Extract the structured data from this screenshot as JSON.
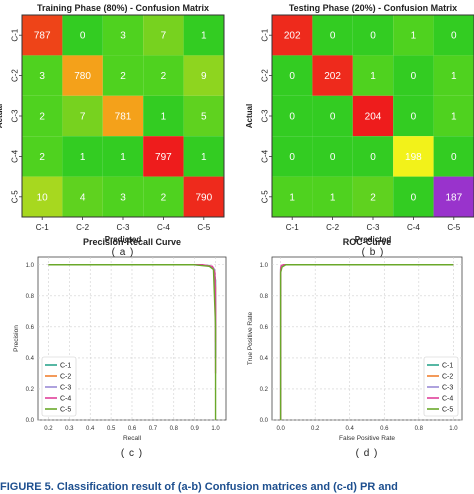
{
  "chart_data": [
    {
      "type": "heatmap",
      "title": "Training Phase (80%) - Confusion Matrix",
      "xlabel": "Predicted",
      "ylabel": "Actual",
      "x_categories": [
        "C-1",
        "C-2",
        "C-3",
        "C-4",
        "C-5"
      ],
      "y_categories": [
        "C-1",
        "C-2",
        "C-3",
        "C-4",
        "C-5"
      ],
      "values": [
        [
          787,
          0,
          3,
          7,
          1
        ],
        [
          3,
          780,
          2,
          2,
          9
        ],
        [
          2,
          7,
          781,
          1,
          5
        ],
        [
          2,
          1,
          1,
          797,
          1
        ],
        [
          10,
          4,
          3,
          2,
          790
        ]
      ],
      "cell_colors": [
        [
          "#ee4418",
          "#33cc22",
          "#4fd21f",
          "#77d21f",
          "#33cc22"
        ],
        [
          "#4fd21f",
          "#f4a11a",
          "#4fd21f",
          "#4fd21f",
          "#8ed51f"
        ],
        [
          "#4fd21f",
          "#77d21f",
          "#f4a11a",
          "#33cc22",
          "#5fd21f"
        ],
        [
          "#4fd21f",
          "#33cc22",
          "#33cc22",
          "#ee1c1c",
          "#33cc22"
        ],
        [
          "#a7d81f",
          "#5fd21f",
          "#4fd21f",
          "#4fd21f",
          "#ee2a1c"
        ]
      ],
      "caption": "( a )"
    },
    {
      "type": "heatmap",
      "title": "Testing Phase (20%) - Confusion Matrix",
      "xlabel": "Predicted",
      "ylabel": "Actual",
      "x_categories": [
        "C-1",
        "C-2",
        "C-3",
        "C-4",
        "C-5"
      ],
      "y_categories": [
        "C-1",
        "C-2",
        "C-3",
        "C-4",
        "C-5"
      ],
      "values": [
        [
          202,
          0,
          0,
          1,
          0
        ],
        [
          0,
          202,
          1,
          0,
          1
        ],
        [
          0,
          0,
          204,
          0,
          1
        ],
        [
          0,
          0,
          0,
          198,
          0
        ],
        [
          1,
          1,
          2,
          0,
          187
        ]
      ],
      "cell_colors": [
        [
          "#ee2a1c",
          "#33cc22",
          "#33cc22",
          "#4fd21f",
          "#33cc22"
        ],
        [
          "#33cc22",
          "#ee2a1c",
          "#4fd21f",
          "#33cc22",
          "#4fd21f"
        ],
        [
          "#33cc22",
          "#33cc22",
          "#ee1c1c",
          "#33cc22",
          "#4fd21f"
        ],
        [
          "#33cc22",
          "#33cc22",
          "#33cc22",
          "#f2f21a",
          "#33cc22"
        ],
        [
          "#4fd21f",
          "#4fd21f",
          "#5fd21f",
          "#33cc22",
          "#9933cc"
        ]
      ],
      "caption": "( b )"
    },
    {
      "type": "line",
      "title": "Precision-Recall Curve",
      "xlabel": "Recall",
      "ylabel": "Precision",
      "xlim": [
        0.15,
        1.05
      ],
      "ylim": [
        0.0,
        1.05
      ],
      "xticks": [
        "0.2",
        "0.3",
        "0.4",
        "0.5",
        "0.6",
        "0.7",
        "0.8",
        "0.9",
        "1.0"
      ],
      "yticks": [
        "0.0",
        "0.2",
        "0.4",
        "0.6",
        "0.8",
        "1.0"
      ],
      "grid": true,
      "legend": "bottom-left",
      "series": [
        {
          "name": "C-1",
          "color": "#2ca58d",
          "points": [
            [
              0.2,
              1.0
            ],
            [
              0.9,
              1.0
            ],
            [
              0.97,
              0.995
            ],
            [
              0.99,
              0.98
            ],
            [
              1.0,
              0.9
            ],
            [
              1.0,
              0.4
            ]
          ]
        },
        {
          "name": "C-2",
          "color": "#f08030",
          "points": [
            [
              0.2,
              1.0
            ],
            [
              0.92,
              1.0
            ],
            [
              0.98,
              0.99
            ],
            [
              0.995,
              0.96
            ],
            [
              1.0,
              0.85
            ],
            [
              1.0,
              0.5
            ]
          ]
        },
        {
          "name": "C-3",
          "color": "#9a8ad6",
          "points": [
            [
              0.2,
              1.0
            ],
            [
              0.93,
              1.0
            ],
            [
              0.98,
              0.99
            ],
            [
              0.995,
              0.97
            ],
            [
              1.0,
              0.8
            ],
            [
              1.0,
              0.45
            ]
          ]
        },
        {
          "name": "C-4",
          "color": "#e0409a",
          "points": [
            [
              0.2,
              1.0
            ],
            [
              0.94,
              1.0
            ],
            [
              0.985,
              0.99
            ],
            [
              0.997,
              0.95
            ],
            [
              1.0,
              0.7
            ],
            [
              1.0,
              0.3
            ]
          ]
        },
        {
          "name": "C-5",
          "color": "#6aa82a",
          "points": [
            [
              0.2,
              1.0
            ],
            [
              0.9,
              1.0
            ],
            [
              0.97,
              0.99
            ],
            [
              0.99,
              0.97
            ],
            [
              1.0,
              0.6
            ],
            [
              1.0,
              0.0
            ]
          ]
        }
      ],
      "caption": "( c )"
    },
    {
      "type": "line",
      "title": "ROC-Curve",
      "xlabel": "False Positive Rate",
      "ylabel": "True Positive Rate",
      "xlim": [
        -0.05,
        1.05
      ],
      "ylim": [
        0.0,
        1.05
      ],
      "xticks": [
        "0.0",
        "0.2",
        "0.4",
        "0.6",
        "0.8",
        "1.0"
      ],
      "yticks": [
        "0.0",
        "0.2",
        "0.4",
        "0.6",
        "0.8",
        "1.0"
      ],
      "grid": true,
      "legend": "bottom-right",
      "series": [
        {
          "name": "C-1",
          "color": "#2ca58d",
          "points": [
            [
              0.0,
              0.0
            ],
            [
              0.0,
              0.97
            ],
            [
              0.005,
              0.99
            ],
            [
              0.02,
              1.0
            ],
            [
              1.0,
              1.0
            ]
          ]
        },
        {
          "name": "C-2",
          "color": "#f08030",
          "points": [
            [
              0.0,
              0.0
            ],
            [
              0.0,
              0.96
            ],
            [
              0.006,
              0.99
            ],
            [
              0.025,
              1.0
            ],
            [
              1.0,
              1.0
            ]
          ]
        },
        {
          "name": "C-3",
          "color": "#9a8ad6",
          "points": [
            [
              0.0,
              0.0
            ],
            [
              0.0,
              0.97
            ],
            [
              0.005,
              0.99
            ],
            [
              0.02,
              1.0
            ],
            [
              1.0,
              1.0
            ]
          ]
        },
        {
          "name": "C-4",
          "color": "#e0409a",
          "points": [
            [
              0.0,
              0.0
            ],
            [
              0.0,
              0.98
            ],
            [
              0.004,
              0.995
            ],
            [
              0.015,
              1.0
            ],
            [
              1.0,
              1.0
            ]
          ]
        },
        {
          "name": "C-5",
          "color": "#6aa82a",
          "points": [
            [
              0.0,
              0.0
            ],
            [
              0.0,
              0.95
            ],
            [
              0.008,
              0.985
            ],
            [
              0.03,
              1.0
            ],
            [
              1.0,
              1.0
            ]
          ]
        }
      ],
      "caption": "( d )"
    }
  ],
  "figure_caption": "FIGURE 5.  Classification result of (a-b) Confusion matrices and (c-d) PR and"
}
